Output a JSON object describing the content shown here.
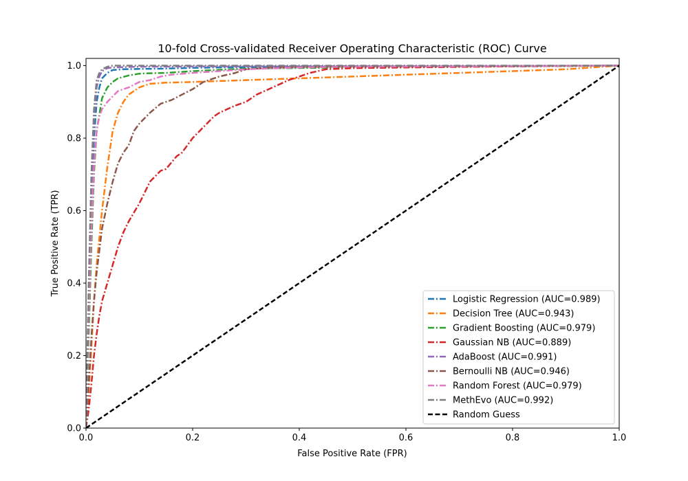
{
  "chart_data": {
    "type": "line",
    "title": "10-fold Cross-validated Receiver Operating Characteristic (ROC) Curve",
    "xlabel": "False Positive Rate (FPR)",
    "ylabel": "True Positive Rate (TPR)",
    "xlim": [
      0,
      1
    ],
    "ylim": [
      0,
      1.02
    ],
    "xticks": [
      0,
      0.2,
      0.4,
      0.6,
      0.8,
      1
    ],
    "xtick_labels": [
      "0.0",
      "0.2",
      "0.4",
      "0.6",
      "0.8",
      "1.0"
    ],
    "yticks": [
      0,
      0.2,
      0.4,
      0.6,
      0.8,
      1
    ],
    "ytick_labels": [
      "0.0",
      "0.2",
      "0.4",
      "0.6",
      "0.8",
      "1.0"
    ],
    "grid": false,
    "legend_position": "lower-right",
    "series": [
      {
        "name": "Logistic Regression (AUC=0.989)",
        "color": "#1f77b4",
        "style": "dashdot",
        "x": [
          0,
          0.005,
          0.01,
          0.015,
          0.02,
          0.025,
          0.03,
          0.04,
          0.05,
          0.07,
          0.1,
          0.15,
          0.2,
          0.3,
          0.5,
          0.8,
          1.0
        ],
        "y": [
          0,
          0.3,
          0.6,
          0.8,
          0.9,
          0.94,
          0.965,
          0.98,
          0.988,
          0.99,
          0.991,
          0.992,
          0.994,
          0.996,
          0.997,
          0.998,
          1.0
        ]
      },
      {
        "name": "Decision Tree (AUC=0.943)",
        "color": "#ff7f0e",
        "style": "dashdot",
        "x": [
          0,
          0.005,
          0.01,
          0.015,
          0.02,
          0.03,
          0.04,
          0.05,
          0.06,
          0.07,
          0.08,
          0.1,
          0.12,
          0.15,
          0.2,
          0.3,
          0.4,
          0.5,
          0.6,
          0.7,
          0.8,
          0.9,
          1.0
        ],
        "y": [
          0,
          0.1,
          0.22,
          0.35,
          0.45,
          0.6,
          0.72,
          0.82,
          0.87,
          0.9,
          0.92,
          0.94,
          0.95,
          0.953,
          0.955,
          0.96,
          0.965,
          0.97,
          0.975,
          0.98,
          0.985,
          0.99,
          1.0
        ]
      },
      {
        "name": "Gradient Boosting (AUC=0.979)",
        "color": "#2ca02c",
        "style": "dashdot",
        "x": [
          0,
          0.005,
          0.01,
          0.015,
          0.02,
          0.03,
          0.04,
          0.05,
          0.06,
          0.08,
          0.1,
          0.12,
          0.15,
          0.2,
          0.3,
          0.5,
          0.7,
          1.0
        ],
        "y": [
          0,
          0.25,
          0.5,
          0.7,
          0.82,
          0.91,
          0.94,
          0.955,
          0.965,
          0.973,
          0.978,
          0.979,
          0.98,
          0.985,
          0.992,
          0.995,
          0.997,
          1.0
        ]
      },
      {
        "name": "Gaussian NB (AUC=0.889)",
        "color": "#d62728",
        "style": "dashdot",
        "x": [
          0,
          0.005,
          0.01,
          0.015,
          0.02,
          0.025,
          0.03,
          0.04,
          0.05,
          0.06,
          0.07,
          0.08,
          0.1,
          0.11,
          0.12,
          0.14,
          0.15,
          0.17,
          0.18,
          0.2,
          0.22,
          0.24,
          0.25,
          0.28,
          0.3,
          0.32,
          0.35,
          0.38,
          0.4,
          0.42,
          0.45,
          0.5,
          0.6,
          0.8,
          1.0
        ],
        "y": [
          0,
          0.05,
          0.12,
          0.2,
          0.26,
          0.31,
          0.35,
          0.4,
          0.45,
          0.5,
          0.54,
          0.57,
          0.62,
          0.65,
          0.68,
          0.71,
          0.715,
          0.75,
          0.76,
          0.8,
          0.83,
          0.86,
          0.87,
          0.89,
          0.9,
          0.92,
          0.94,
          0.96,
          0.97,
          0.98,
          0.99,
          0.993,
          0.995,
          0.998,
          1.0
        ]
      },
      {
        "name": "AdaBoost (AUC=0.991)",
        "color": "#9467bd",
        "style": "dashdot",
        "x": [
          0,
          0.005,
          0.01,
          0.015,
          0.02,
          0.025,
          0.03,
          0.04,
          0.05,
          0.07,
          0.1,
          0.2,
          0.3,
          0.5,
          0.7,
          1.0
        ],
        "y": [
          0,
          0.35,
          0.65,
          0.85,
          0.94,
          0.97,
          0.985,
          0.993,
          0.995,
          0.996,
          0.997,
          0.998,
          0.998,
          0.999,
          0.999,
          1.0
        ]
      },
      {
        "name": "Bernoulli NB (AUC=0.946)",
        "color": "#8c564b",
        "style": "dashdot",
        "x": [
          0,
          0.005,
          0.01,
          0.015,
          0.02,
          0.03,
          0.04,
          0.05,
          0.06,
          0.07,
          0.08,
          0.09,
          0.1,
          0.12,
          0.14,
          0.16,
          0.18,
          0.2,
          0.22,
          0.25,
          0.28,
          0.3,
          0.35,
          0.4,
          0.5,
          0.7,
          1.0
        ],
        "y": [
          0,
          0.12,
          0.25,
          0.35,
          0.43,
          0.55,
          0.62,
          0.68,
          0.73,
          0.76,
          0.78,
          0.82,
          0.84,
          0.87,
          0.895,
          0.905,
          0.92,
          0.935,
          0.955,
          0.97,
          0.98,
          0.99,
          0.995,
          0.997,
          0.998,
          0.999,
          1.0
        ]
      },
      {
        "name": "Random Forest (AUC=0.979)",
        "color": "#e377c2",
        "style": "dashdot",
        "x": [
          0,
          0.005,
          0.01,
          0.015,
          0.02,
          0.025,
          0.03,
          0.04,
          0.05,
          0.06,
          0.08,
          0.1,
          0.12,
          0.14,
          0.16,
          0.2,
          0.25,
          0.3,
          0.4,
          0.5,
          0.7,
          1.0
        ],
        "y": [
          0,
          0.3,
          0.55,
          0.72,
          0.82,
          0.86,
          0.88,
          0.9,
          0.915,
          0.93,
          0.94,
          0.955,
          0.96,
          0.97,
          0.975,
          0.98,
          0.985,
          0.99,
          0.995,
          0.997,
          0.998,
          1.0
        ]
      },
      {
        "name": "MethEvo (AUC=0.992)",
        "color": "#7f7f7f",
        "style": "dashdot",
        "x": [
          0,
          0.005,
          0.01,
          0.015,
          0.02,
          0.025,
          0.03,
          0.04,
          0.05,
          0.1,
          0.2,
          0.4,
          0.7,
          1.0
        ],
        "y": [
          0,
          0.4,
          0.7,
          0.88,
          0.96,
          0.98,
          0.99,
          0.997,
          1.0,
          1.0,
          1.0,
          1.0,
          1.0,
          1.0
        ]
      },
      {
        "name": "Random Guess",
        "color": "#000000",
        "style": "dashed",
        "x": [
          0,
          1
        ],
        "y": [
          0,
          1
        ]
      }
    ]
  }
}
